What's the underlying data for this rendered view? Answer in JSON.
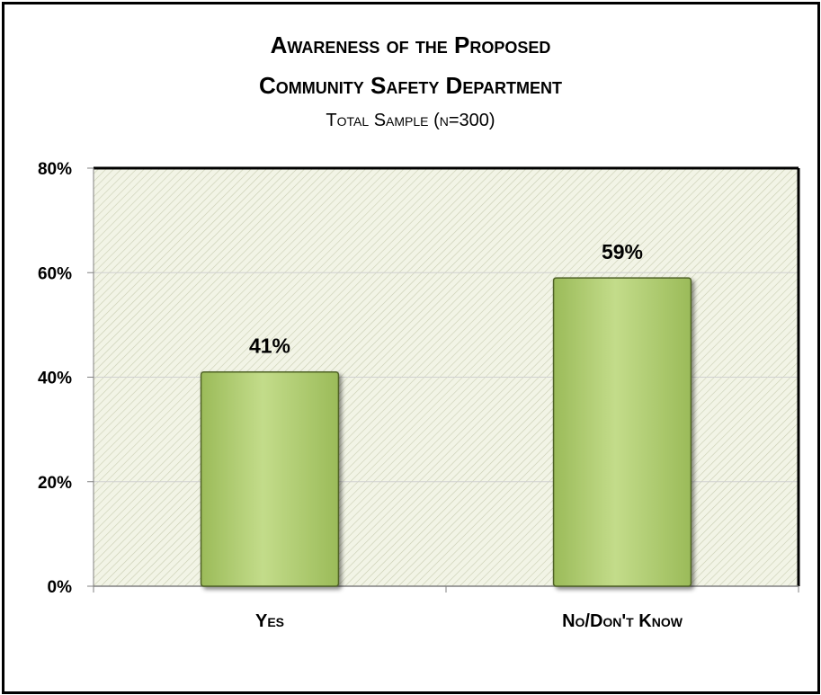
{
  "chart_data": {
    "type": "bar",
    "title_line1": "Awareness of the  Proposed",
    "title_line2": "Community Safety Department",
    "subtitle": "Total Sample (n=300)",
    "categories": [
      "Yes",
      "No/Don't Know"
    ],
    "values": [
      41,
      59
    ],
    "data_labels": [
      "41%",
      "59%"
    ],
    "ylim": [
      0,
      80
    ],
    "yticks": [
      0,
      20,
      40,
      60,
      80
    ],
    "ytick_labels": [
      "0%",
      "20%",
      "40%",
      "60%",
      "80%"
    ],
    "xlabel": "",
    "ylabel": "",
    "grid": true,
    "legend": "none",
    "colors": {
      "bar_fill": "#9bbb59",
      "bar_highlight": "#c3dc8a",
      "bar_edge": "#4f6228",
      "plot_background": "#f2f4e6",
      "hatch": "#c9cdb2",
      "gridline": "#d0d0d0"
    }
  }
}
